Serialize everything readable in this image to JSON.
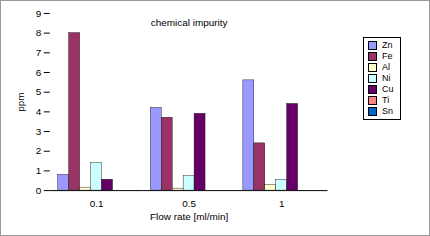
{
  "chart_data": {
    "type": "bar",
    "title": "chemical impurity",
    "x_label": "Flow rate [ml/min]",
    "y_label": "ppm",
    "categories": [
      "0.1",
      "0.5",
      "1"
    ],
    "series": [
      {
        "name": "Zn",
        "color": "#9999ff",
        "values": [
          0.8,
          4.2,
          5.6
        ]
      },
      {
        "name": "Fe",
        "color": "#993366",
        "values": [
          8.0,
          3.7,
          2.4
        ]
      },
      {
        "name": "Al",
        "color": "#ffffcc",
        "values": [
          0.15,
          0.1,
          0.3
        ]
      },
      {
        "name": "Ni",
        "color": "#ccffff",
        "values": [
          1.4,
          0.75,
          0.55
        ]
      },
      {
        "name": "Cu",
        "color": "#660066",
        "values": [
          0.55,
          3.9,
          4.4
        ]
      },
      {
        "name": "Ti",
        "color": "#ff8080",
        "values": [
          0,
          0,
          0
        ]
      },
      {
        "name": "Sn",
        "color": "#0066cc",
        "values": [
          0,
          0,
          0
        ]
      }
    ],
    "ylim": [
      0,
      9
    ],
    "yticks": [
      0,
      1,
      2,
      3,
      4,
      5,
      6,
      7,
      8,
      9
    ],
    "grid": false,
    "legend": "right"
  }
}
